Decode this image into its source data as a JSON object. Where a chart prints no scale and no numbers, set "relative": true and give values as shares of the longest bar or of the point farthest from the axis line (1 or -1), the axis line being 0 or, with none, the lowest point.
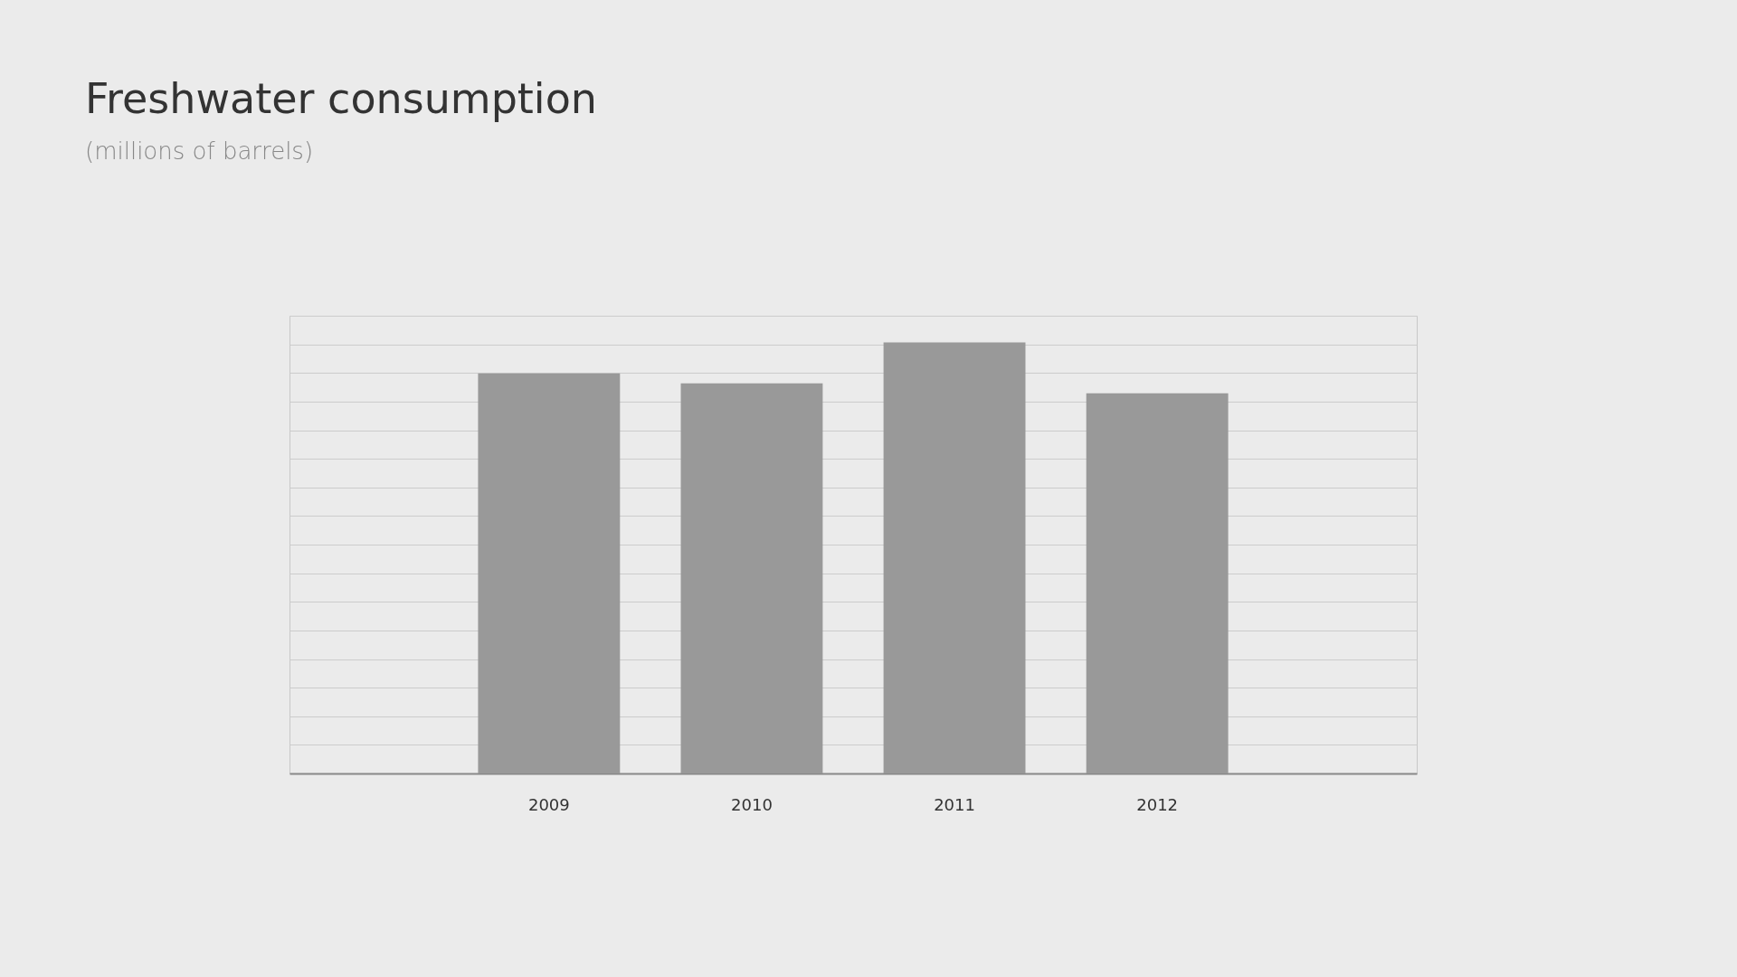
{
  "chart_data": {
    "type": "bar",
    "title": "Freshwater consumption",
    "subtitle": "(millions of barrels)",
    "categories": [
      "2009",
      "2010",
      "2011",
      "2012"
    ],
    "values": [
      0.928,
      0.905,
      1,
      0.882
    ],
    "color": "#999999",
    "relative": true,
    "grid": "y"
  }
}
